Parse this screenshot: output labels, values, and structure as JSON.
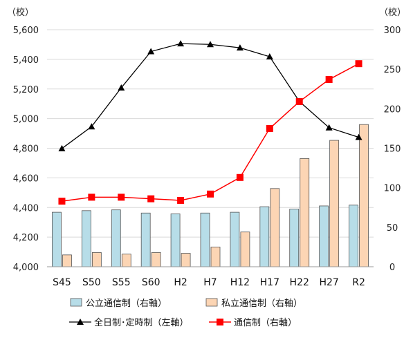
{
  "chart_data": {
    "type": "bar+line",
    "categories": [
      "S45",
      "S50",
      "S55",
      "S60",
      "H2",
      "H7",
      "H12",
      "H17",
      "H22",
      "H27",
      "R2"
    ],
    "left_axis": {
      "unit": "（校）",
      "min": 4000,
      "max": 5600,
      "ticks": [
        "4,000",
        "4,200",
        "4,400",
        "4,600",
        "4,800",
        "5,000",
        "5,200",
        "5,400",
        "5,600"
      ]
    },
    "right_axis": {
      "unit": "（校）",
      "min": 0,
      "max": 300,
      "ticks": [
        "0",
        "50",
        "100",
        "150",
        "200",
        "250",
        "300"
      ]
    },
    "series": [
      {
        "name": "公立通信制（右軸）",
        "type": "bar",
        "axis": "right",
        "color": "#b7dde8",
        "values": [
          69,
          71,
          72,
          68,
          67,
          68,
          69,
          76,
          73,
          77,
          78
        ]
      },
      {
        "name": "私立通信制（右軸）",
        "type": "bar",
        "axis": "right",
        "color": "#fcd5b4",
        "values": [
          15,
          18,
          16,
          18,
          17,
          25,
          44,
          99,
          137,
          160,
          180
        ]
      },
      {
        "name": "全日制･定時制（左軸）",
        "type": "line",
        "axis": "left",
        "color": "#000000",
        "marker": "triangle",
        "values": [
          4798,
          4946,
          5208,
          5453,
          5506,
          5501,
          5478,
          5418,
          5116,
          4939,
          4874
        ]
      },
      {
        "name": "通信制（右軸）",
        "type": "line",
        "axis": "right",
        "color": "#ff0000",
        "marker": "square",
        "values": [
          83,
          88,
          88,
          86,
          84,
          92,
          113,
          175,
          209,
          237,
          257
        ]
      }
    ],
    "legend_position": "bottom",
    "grid": "horizontal"
  }
}
